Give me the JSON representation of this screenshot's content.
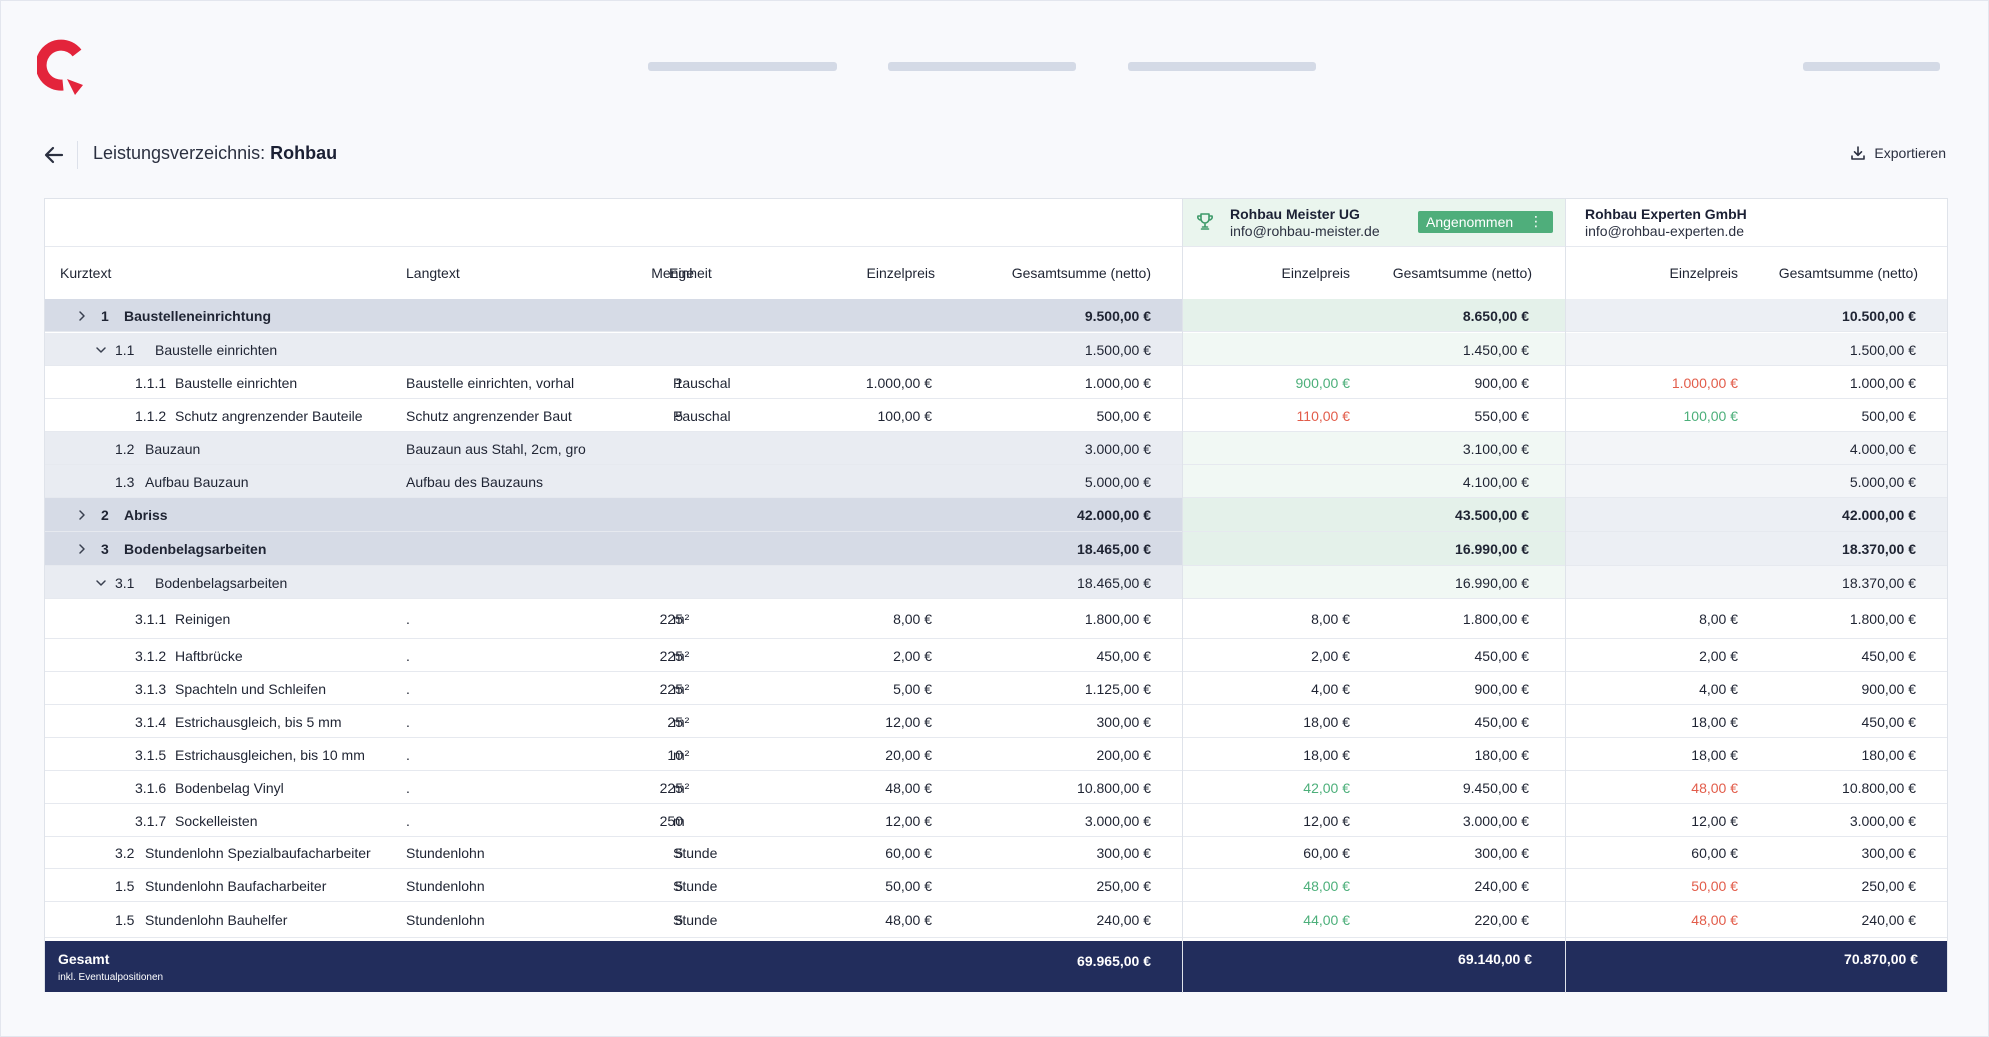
{
  "page": {
    "title_prefix": "Leistungsverzeichnis:",
    "title_bold": "Rohbau",
    "export_label": "Exportieren",
    "brand_color": "#e3243b"
  },
  "columns": {
    "kurztext": "Kurztext",
    "langtext": "Langtext",
    "menge": "Menge",
    "einheit": "Einheit",
    "einzelpreis": "Einzelpreis",
    "gesamtsumme": "Gesamtsumme (netto)"
  },
  "vendors": [
    {
      "name": "Rohbau Meister UG",
      "email": "info@rohbau-meister.de",
      "status": "Angenommen",
      "icon": "trophy-icon"
    },
    {
      "name": "Rohbau Experten GmbH",
      "email": "info@rohbau-experten.de"
    }
  ],
  "rows": [
    {
      "level": 0,
      "chevron": "right",
      "nr": "1",
      "kurz": "Baustelleneinrichtung",
      "lang": "",
      "menge": "",
      "einheit": "",
      "ep": "",
      "gp": "9.500,00 €",
      "v1_ep": "",
      "v1_gp": "8.650,00 €",
      "v1_ep_tone": "",
      "v2_ep": "",
      "v2_gp": "10.500,00 €",
      "v2_ep_tone": ""
    },
    {
      "level": 1,
      "chevron": "down",
      "nr": "1.1",
      "kurz": "Baustelle einrichten",
      "lang": "",
      "menge": "",
      "einheit": "",
      "ep": "",
      "gp": "1.500,00 €",
      "v1_ep": "",
      "v1_gp": "1.450,00 €",
      "v1_ep_tone": "",
      "v2_ep": "",
      "v2_gp": "1.500,00 €",
      "v2_ep_tone": ""
    },
    {
      "level": 2,
      "chevron": "",
      "nr": "1.1.1",
      "kurz": "Baustelle einrichten",
      "lang": "Baustelle einrichten, vorhal",
      "menge": "1",
      "einheit": "Pauschal",
      "ep": "1.000,00 €",
      "gp": "1.000,00 €",
      "v1_ep": "900,00 €",
      "v1_gp": "900,00 €",
      "v1_ep_tone": "green",
      "v2_ep": "1.000,00 €",
      "v2_gp": "1.000,00 €",
      "v2_ep_tone": "red"
    },
    {
      "level": 2,
      "chevron": "",
      "nr": "1.1.2",
      "kurz": "Schutz angrenzender Bauteile",
      "lang": "Schutz angrenzender Baut",
      "menge": "5",
      "einheit": "Pauschal",
      "ep": "100,00 €",
      "gp": "500,00 €",
      "v1_ep": "110,00 €",
      "v1_gp": "550,00 €",
      "v1_ep_tone": "red",
      "v2_ep": "100,00 €",
      "v2_gp": "500,00 €",
      "v2_ep_tone": "green"
    },
    {
      "level": 1,
      "chevron": "",
      "nr": "1.2",
      "kurz": "Bauzaun",
      "lang": "Bauzaun aus Stahl, 2cm, gro",
      "menge": "",
      "einheit": "",
      "ep": "",
      "gp": "3.000,00 €",
      "v1_ep": "",
      "v1_gp": "3.100,00 €",
      "v1_ep_tone": "",
      "v2_ep": "",
      "v2_gp": "4.000,00 €",
      "v2_ep_tone": ""
    },
    {
      "level": 1,
      "chevron": "",
      "nr": "1.3",
      "kurz": "Aufbau Bauzaun",
      "lang": "Aufbau des Bauzauns",
      "menge": "",
      "einheit": "",
      "ep": "",
      "gp": "5.000,00 €",
      "v1_ep": "",
      "v1_gp": "4.100,00 €",
      "v1_ep_tone": "",
      "v2_ep": "",
      "v2_gp": "5.000,00 €",
      "v2_ep_tone": ""
    },
    {
      "level": 0,
      "chevron": "right",
      "nr": "2",
      "kurz": "Abriss",
      "lang": "",
      "menge": "",
      "einheit": "",
      "ep": "",
      "gp": "42.000,00 €",
      "v1_ep": "",
      "v1_gp": "43.500,00 €",
      "v1_ep_tone": "",
      "v2_ep": "",
      "v2_gp": "42.000,00 €",
      "v2_ep_tone": ""
    },
    {
      "level": 0,
      "chevron": "right",
      "nr": "3",
      "kurz": "Bodenbelagsarbeiten",
      "lang": "",
      "menge": "",
      "einheit": "",
      "ep": "",
      "gp": "18.465,00 €",
      "v1_ep": "",
      "v1_gp": "16.990,00 €",
      "v1_ep_tone": "",
      "v2_ep": "",
      "v2_gp": "18.370,00 €",
      "v2_ep_tone": ""
    },
    {
      "level": 1,
      "chevron": "down",
      "nr": "3.1",
      "kurz": "Bodenbelagsarbeiten",
      "lang": "",
      "menge": "",
      "einheit": "",
      "ep": "",
      "gp": "18.465,00 €",
      "v1_ep": "",
      "v1_gp": "16.990,00 €",
      "v1_ep_tone": "",
      "v2_ep": "",
      "v2_gp": "18.370,00 €",
      "v2_ep_tone": ""
    },
    {
      "level": 2,
      "chevron": "",
      "nr": "3.1.1",
      "kurz": "Reinigen",
      "lang": ".",
      "menge": "225",
      "einheit": "m²",
      "ep": "8,00 €",
      "gp": "1.800,00 €",
      "v1_ep": "8,00 €",
      "v1_gp": "1.800,00 €",
      "v1_ep_tone": "",
      "v2_ep": "8,00 €",
      "v2_gp": "1.800,00 €",
      "v2_ep_tone": ""
    },
    {
      "level": 2,
      "chevron": "",
      "nr": "3.1.2",
      "kurz": "Haftbrücke",
      "lang": ".",
      "menge": "225",
      "einheit": "m²",
      "ep": "2,00 €",
      "gp": "450,00 €",
      "v1_ep": "2,00 €",
      "v1_gp": "450,00 €",
      "v1_ep_tone": "",
      "v2_ep": "2,00 €",
      "v2_gp": "450,00 €",
      "v2_ep_tone": ""
    },
    {
      "level": 2,
      "chevron": "",
      "nr": "3.1.3",
      "kurz": "Spachteln und Schleifen",
      "lang": ".",
      "menge": "225",
      "einheit": "m²",
      "ep": "5,00 €",
      "gp": "1.125,00 €",
      "v1_ep": "4,00 €",
      "v1_gp": "900,00 €",
      "v1_ep_tone": "",
      "v2_ep": "4,00 €",
      "v2_gp": "900,00 €",
      "v2_ep_tone": ""
    },
    {
      "level": 2,
      "chevron": "",
      "nr": "3.1.4",
      "kurz": "Estrichausgleich, bis 5 mm",
      "lang": ".",
      "menge": "25",
      "einheit": "m²",
      "ep": "12,00 €",
      "gp": "300,00 €",
      "v1_ep": "18,00 €",
      "v1_gp": "450,00 €",
      "v1_ep_tone": "",
      "v2_ep": "18,00 €",
      "v2_gp": "450,00 €",
      "v2_ep_tone": ""
    },
    {
      "level": 2,
      "chevron": "",
      "nr": "3.1.5",
      "kurz": "Estrichausgleichen, bis 10 mm",
      "lang": ".",
      "menge": "10",
      "einheit": "m²",
      "ep": "20,00 €",
      "gp": "200,00 €",
      "v1_ep": "18,00 €",
      "v1_gp": "180,00 €",
      "v1_ep_tone": "",
      "v2_ep": "18,00 €",
      "v2_gp": "180,00 €",
      "v2_ep_tone": ""
    },
    {
      "level": 2,
      "chevron": "",
      "nr": "3.1.6",
      "kurz": "Bodenbelag Vinyl",
      "lang": ".",
      "menge": "225",
      "einheit": "m²",
      "ep": "48,00 €",
      "gp": "10.800,00 €",
      "v1_ep": "42,00 €",
      "v1_gp": "9.450,00 €",
      "v1_ep_tone": "green",
      "v2_ep": "48,00 €",
      "v2_gp": "10.800,00 €",
      "v2_ep_tone": "red"
    },
    {
      "level": 2,
      "chevron": "",
      "nr": "3.1.7",
      "kurz": "Sockelleisten",
      "lang": ".",
      "menge": "250",
      "einheit": "m",
      "ep": "12,00 €",
      "gp": "3.000,00 €",
      "v1_ep": "12,00 €",
      "v1_gp": "3.000,00 €",
      "v1_ep_tone": "",
      "v2_ep": "12,00 €",
      "v2_gp": "3.000,00 €",
      "v2_ep_tone": ""
    },
    {
      "level": 1,
      "chevron": "",
      "nr": "3.2",
      "kurz": "Stundenlohn Spezialbaufacharbeiter",
      "lang": "Stundenlohn",
      "menge": "5",
      "einheit": "Stunde",
      "ep": "60,00 €",
      "gp": "300,00 €",
      "v1_ep": "60,00 €",
      "v1_gp": "300,00 €",
      "v1_ep_tone": "",
      "v2_ep": "60,00 €",
      "v2_gp": "300,00 €",
      "v2_ep_tone": ""
    },
    {
      "level": 1,
      "chevron": "",
      "nr": "1.5",
      "kurz": "Stundenlohn Baufacharbeiter",
      "lang": "Stundenlohn",
      "menge": "5",
      "einheit": "Stunde",
      "ep": "50,00 €",
      "gp": "250,00 €",
      "v1_ep": "48,00 €",
      "v1_gp": "240,00 €",
      "v1_ep_tone": "green",
      "v2_ep": "50,00 €",
      "v2_gp": "250,00 €",
      "v2_ep_tone": "red"
    },
    {
      "level": 1,
      "chevron": "",
      "nr": "1.5",
      "kurz": "Stundenlohn Bauhelfer",
      "lang": "Stundenlohn",
      "menge": "5",
      "einheit": "Stunde",
      "ep": "48,00 €",
      "gp": "240,00 €",
      "v1_ep": "44,00 €",
      "v1_gp": "220,00 €",
      "v1_ep_tone": "green",
      "v2_ep": "48,00 €",
      "v2_gp": "240,00 €",
      "v2_ep_tone": "red"
    }
  ],
  "footer": {
    "label": "Gesamt",
    "sublabel": "inkl. Eventualpositionen",
    "total": "69.965,00 €",
    "v1_total": "69.140,00 €",
    "v2_total": "70.870,00 €"
  }
}
